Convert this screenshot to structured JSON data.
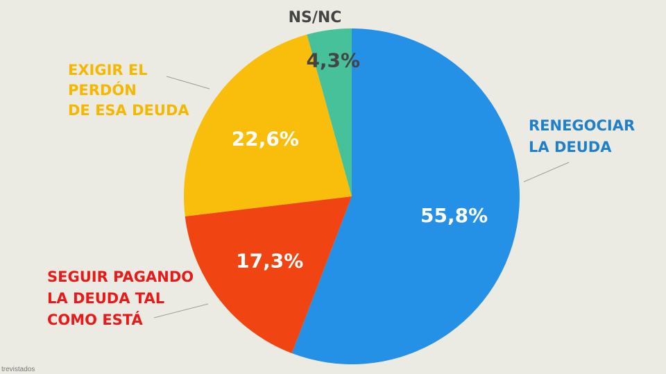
{
  "chart_data": {
    "type": "pie",
    "slices": [
      {
        "name": "RENEGOCIAR LA DEUDA",
        "label_lines": [
          "RENEGOCIAR",
          "LA DEUDA"
        ],
        "value": 55.8,
        "value_label": "55,8%",
        "color": "#2490e6",
        "label_color": "#1f7fc9",
        "value_color": "#ffffff"
      },
      {
        "name": "SEGUIR PAGANDO LA DEUDA TAL COMO ESTÁ",
        "label_lines": [
          "SEGUIR PAGANDO",
          "LA DEUDA TAL",
          "COMO ESTÁ"
        ],
        "value": 17.3,
        "value_label": "17,3%",
        "color": "#f04512",
        "label_color": "#e81919",
        "value_color": "#ffffff"
      },
      {
        "name": "EXIGIR EL PERDÓN DE ESA DEUDA",
        "label_lines": [
          "EXIGIR EL",
          "PERDÓN",
          "DE ESA DEUDA"
        ],
        "value": 22.6,
        "value_label": "22,6%",
        "color": "#f9bd0c",
        "label_color": "#f5b800",
        "value_color": "#ffffff"
      },
      {
        "name": "NS/NC",
        "label_lines": [
          "NS/NC"
        ],
        "value": 4.3,
        "value_label": "4,3%",
        "color": "#46c19a",
        "label_color": "#444444",
        "value_color": "#444444"
      }
    ],
    "start": "12 o'clock",
    "direction": "clockwise",
    "legend": "none"
  },
  "source": "trevistados"
}
